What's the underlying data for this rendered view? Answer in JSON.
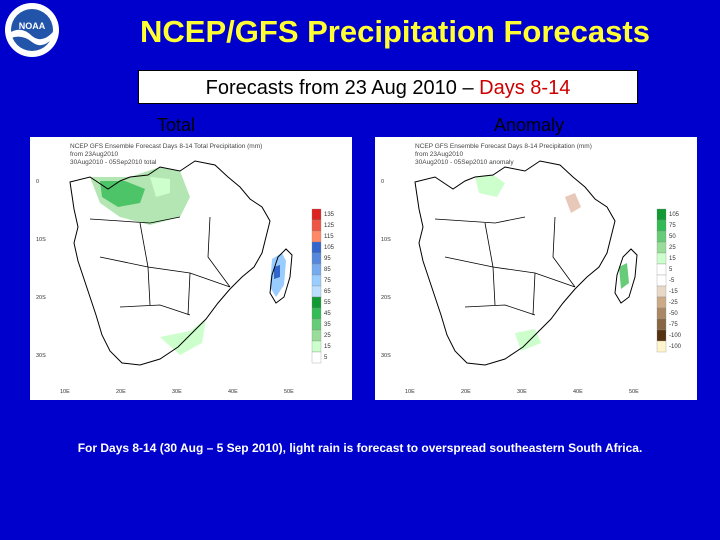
{
  "logo": {
    "icon": "noaa-logo-icon",
    "text": "NOAA"
  },
  "title": "NCEP/GFS Precipitation Forecasts",
  "subtitle": {
    "prefix": "Forecasts from 23 Aug 2010 – ",
    "highlight": "Days 8-14",
    "highlight_color": "#cc0000"
  },
  "panels": {
    "total": {
      "label": "Total",
      "lines": [
        "NCEP GFS Ensemble Forecast Days 8-14 Total Precipitation (mm)",
        "from 23Aug2010",
        "30Aug2010 - 05Sep2010 total"
      ],
      "colorbar": [
        {
          "label": "135",
          "color": "#dd2222"
        },
        {
          "label": "125",
          "color": "#ee5544"
        },
        {
          "label": "115",
          "color": "#ff8866"
        },
        {
          "label": "105",
          "color": "#3366cc"
        },
        {
          "label": "95",
          "color": "#5588dd"
        },
        {
          "label": "85",
          "color": "#77aaee"
        },
        {
          "label": "75",
          "color": "#99ccff"
        },
        {
          "label": "65",
          "color": "#bbddff"
        },
        {
          "label": "55",
          "color": "#119933"
        },
        {
          "label": "45",
          "color": "#33bb55"
        },
        {
          "label": "35",
          "color": "#66cc77"
        },
        {
          "label": "25",
          "color": "#99dd99"
        },
        {
          "label": "15",
          "color": "#ccffcc"
        },
        {
          "label": "5",
          "color": "#ffffff"
        }
      ]
    },
    "anomaly": {
      "label": "Anomaly",
      "lines": [
        "NCEP GFS Ensemble Forecast Days 8-14 Precipitation (mm)",
        "from 23Aug2010",
        "30Aug2010 - 05Sep2010 anomaly"
      ],
      "colorbar": [
        {
          "label": "105",
          "color": "#119933"
        },
        {
          "label": "75",
          "color": "#33bb55"
        },
        {
          "label": "50",
          "color": "#66cc77"
        },
        {
          "label": "25",
          "color": "#99dd99"
        },
        {
          "label": "15",
          "color": "#ccffcc"
        },
        {
          "label": "5",
          "color": "#ffffff"
        },
        {
          "label": "-5",
          "color": "#ffffff"
        },
        {
          "label": "-15",
          "color": "#e8d8c8"
        },
        {
          "label": "-25",
          "color": "#ccaa88"
        },
        {
          "label": "-50",
          "color": "#aa8866"
        },
        {
          "label": "-75",
          "color": "#886644"
        },
        {
          "label": "-100",
          "color": "#553311"
        },
        {
          "label": "-100",
          "color": "#fff5cc"
        }
      ]
    }
  },
  "map_ticks": {
    "lat": [
      "0",
      "10S",
      "20S",
      "30S"
    ],
    "lon": [
      "10E",
      "20E",
      "30E",
      "40E",
      "50E"
    ]
  },
  "caption": "For Days 8-14 (30 Aug – 5 Sep 2010), light rain is forecast to overspread southeastern South Africa."
}
